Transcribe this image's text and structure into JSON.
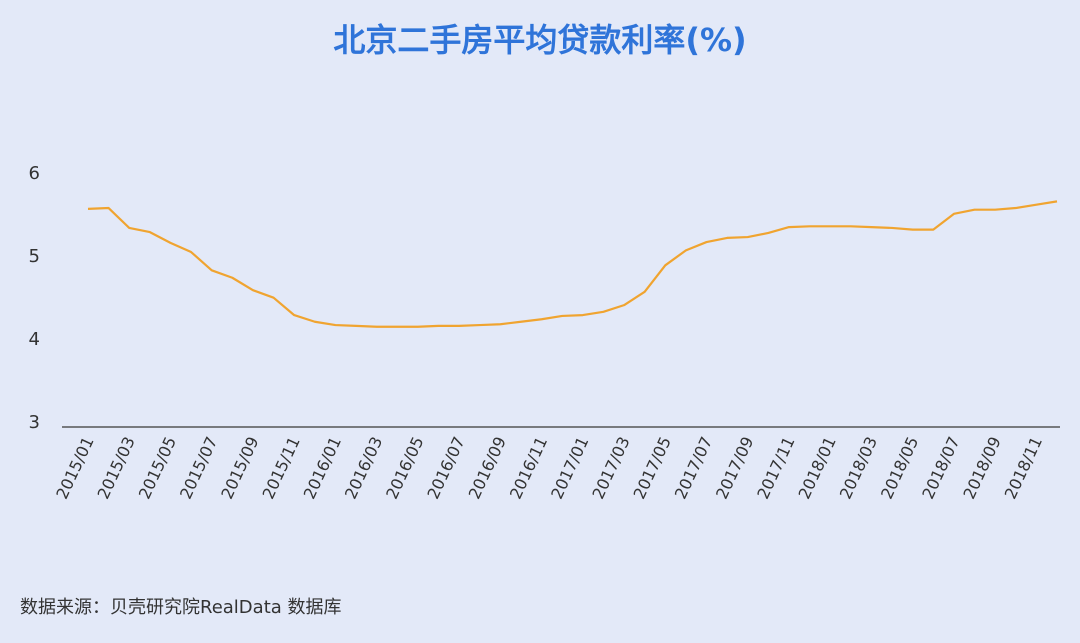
{
  "chart_data": {
    "type": "line",
    "title": "北京二手房平均贷款利率(%)",
    "source": "数据来源：贝壳研究院RealData 数据库",
    "categories": [
      "2015/01",
      null,
      "2015/03",
      null,
      "2015/05",
      null,
      "2015/07",
      null,
      "2015/09",
      null,
      "2015/11",
      null,
      "2016/01",
      null,
      "2016/03",
      null,
      "2016/05",
      null,
      "2016/07",
      null,
      "2016/09",
      null,
      "2016/11",
      null,
      "2017/01",
      null,
      "2017/03",
      null,
      "2017/05",
      null,
      "2017/07",
      null,
      "2017/09",
      null,
      "2017/11",
      null,
      "2018/01",
      null,
      "2018/03",
      null,
      "2018/05",
      null,
      "2018/07",
      null,
      "2018/09",
      null,
      "2018/11",
      null
    ],
    "series": [
      {
        "name": "平均贷款利率",
        "color": "#f0a430",
        "values": [
          5.58,
          5.59,
          5.35,
          5.3,
          5.17,
          5.06,
          4.84,
          4.75,
          4.6,
          4.51,
          4.3,
          4.22,
          4.18,
          4.17,
          4.16,
          4.16,
          4.16,
          4.17,
          4.17,
          4.18,
          4.19,
          4.22,
          4.25,
          4.29,
          4.3,
          4.34,
          4.42,
          4.58,
          4.9,
          5.08,
          5.18,
          5.23,
          5.24,
          5.29,
          5.36,
          5.37,
          5.37,
          5.37,
          5.36,
          5.35,
          5.33,
          5.33,
          5.52,
          5.57,
          5.57,
          5.59,
          5.63,
          5.67
        ]
      }
    ],
    "ylim": [
      3,
      6
    ],
    "yticks": [
      3,
      4,
      5,
      6
    ],
    "grid": false
  }
}
